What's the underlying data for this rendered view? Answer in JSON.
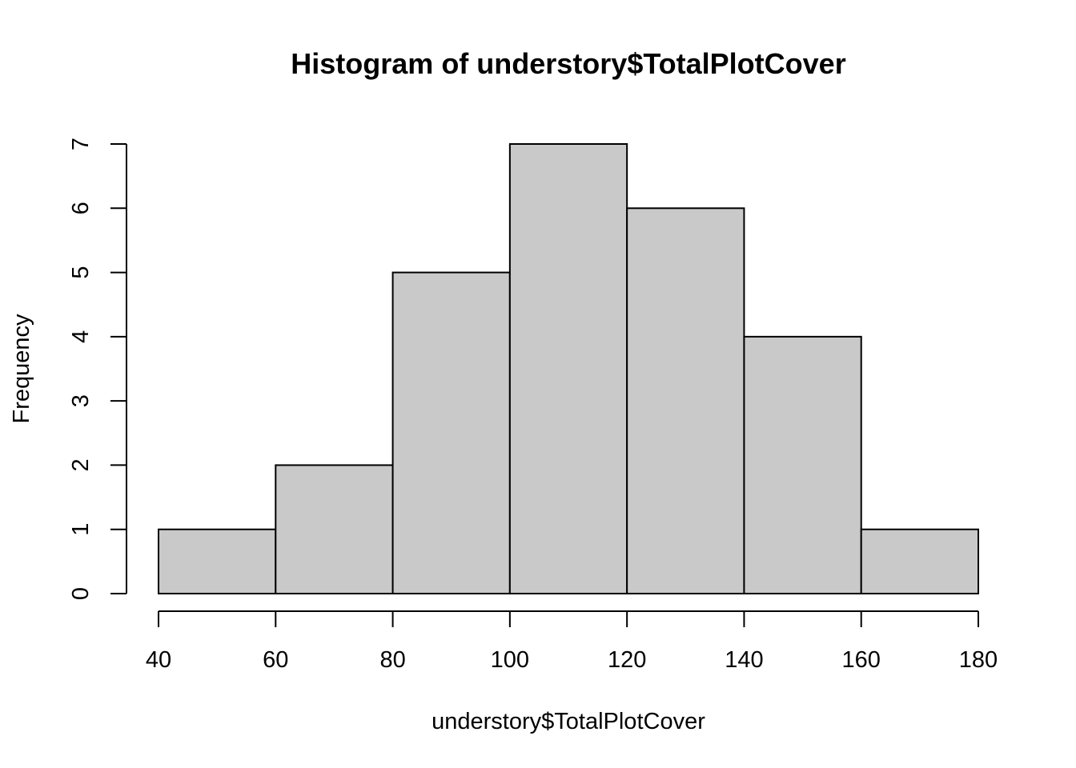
{
  "chart_data": {
    "type": "bar",
    "title": "Histogram of understory$TotalPlotCover",
    "xlabel": "understory$TotalPlotCover",
    "ylabel": "Frequency",
    "bins": [
      {
        "start": 40,
        "end": 60,
        "count": 1
      },
      {
        "start": 60,
        "end": 80,
        "count": 2
      },
      {
        "start": 80,
        "end": 100,
        "count": 5
      },
      {
        "start": 100,
        "end": 120,
        "count": 7
      },
      {
        "start": 120,
        "end": 140,
        "count": 6
      },
      {
        "start": 140,
        "end": 160,
        "count": 4
      },
      {
        "start": 160,
        "end": 180,
        "count": 1
      }
    ],
    "xlim": [
      40,
      180
    ],
    "ylim": [
      0,
      7
    ],
    "x_ticks": [
      "40",
      "60",
      "80",
      "100",
      "120",
      "140",
      "160",
      "180"
    ],
    "y_ticks": [
      "0",
      "1",
      "2",
      "3",
      "4",
      "5",
      "6",
      "7"
    ],
    "grid": false,
    "legend": "none",
    "bar_color": "#c9c9c9",
    "edge_color": "#000000"
  }
}
